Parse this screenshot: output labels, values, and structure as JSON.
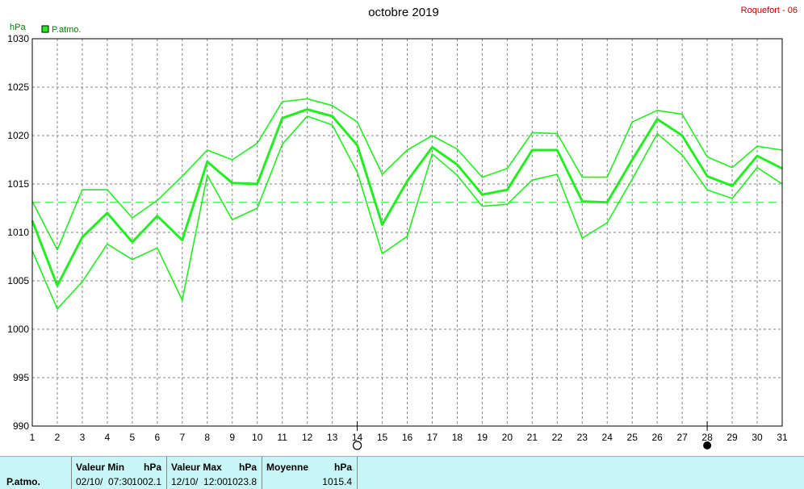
{
  "chart": {
    "title": "octobre 2019",
    "station": "Roquefort - 06",
    "unit": "hPa",
    "legend": "P.atmo.",
    "series_color": "#22ee22"
  },
  "chart_data": {
    "type": "line",
    "title": "octobre 2019",
    "ylabel": "hPa",
    "ylim": [
      990,
      1030
    ],
    "yticks": [
      990,
      995,
      1000,
      1005,
      1010,
      1015,
      1020,
      1025,
      1030
    ],
    "x": [
      1,
      2,
      3,
      4,
      5,
      6,
      7,
      8,
      9,
      10,
      11,
      12,
      13,
      14,
      15,
      16,
      17,
      18,
      19,
      20,
      21,
      22,
      23,
      24,
      25,
      26,
      27,
      28,
      29,
      30,
      31
    ],
    "series": [
      {
        "name": "P.atmo.",
        "values": [
          1011.2,
          1004.5,
          1009.5,
          1012.0,
          1009.0,
          1011.7,
          1009.2,
          1017.3,
          1015.1,
          1015.0,
          1021.8,
          1022.7,
          1022.0,
          1019.0,
          1010.8,
          1015.3,
          1018.8,
          1017.0,
          1013.9,
          1014.4,
          1018.5,
          1018.5,
          1013.2,
          1013.1,
          1017.5,
          1021.7,
          1020.0,
          1015.8,
          1014.8,
          1017.9,
          1016.6
        ]
      },
      {
        "values": [
          1013.2,
          1008.2,
          1014.4,
          1014.4,
          1011.5,
          1013.3,
          1015.8,
          1018.5,
          1017.5,
          1019.2,
          1023.5,
          1023.8,
          1023.1,
          1021.4,
          1016.0,
          1018.5,
          1020.0,
          1018.6,
          1015.7,
          1016.6,
          1020.3,
          1020.2,
          1015.7,
          1015.7,
          1021.4,
          1022.6,
          1022.2,
          1017.8,
          1016.7,
          1018.9,
          1018.5
        ]
      },
      {
        "values": [
          1008.1,
          1002.1,
          1004.9,
          1008.8,
          1007.2,
          1008.4,
          1003.0,
          1015.9,
          1011.3,
          1012.5,
          1019.1,
          1022.0,
          1021.1,
          1016.2,
          1007.8,
          1009.6,
          1018.1,
          1015.9,
          1012.7,
          1012.9,
          1015.4,
          1016.0,
          1009.4,
          1011.0,
          1015.5,
          1020.2,
          1018.0,
          1014.4,
          1013.5,
          1016.7,
          1015.0
        ]
      }
    ],
    "mean_line": 1013.1,
    "markers": [
      {
        "day": 14,
        "symbol": "open-circle"
      },
      {
        "day": 28,
        "symbol": "filled-circle"
      }
    ]
  },
  "stats": {
    "row_label": "P.atmo.",
    "min": {
      "label": "Valeur Min",
      "unit": "hPa",
      "date": "02/10/  07:30",
      "value": "1002.1"
    },
    "max": {
      "label": "Valeur Max",
      "unit": "hPa",
      "date": "12/10/  12:00",
      "value": "1023.8"
    },
    "avg": {
      "label": "Moyenne",
      "unit": "hPa",
      "value": "1015.4"
    }
  }
}
